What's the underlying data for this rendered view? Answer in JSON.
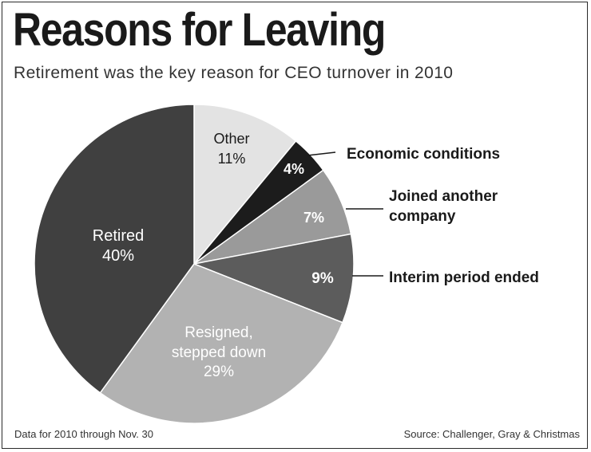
{
  "title": "Reasons for Leaving",
  "subtitle": "Retirement was the key reason for CEO turnover in 2010",
  "footer": {
    "note": "Data for 2010 through Nov. 30",
    "source": "Source: Challenger, Gray & Christmas"
  },
  "chart_data": {
    "type": "pie",
    "title": "Reasons for Leaving",
    "subtitle": "Retirement was the key reason for CEO turnover in 2010",
    "unit": "%",
    "slices": [
      {
        "label": "Other",
        "value": 11,
        "value_label": "11%",
        "color": "#e3e3e3",
        "text_color": "#1a1a1a"
      },
      {
        "label": "Economic conditions",
        "value": 4,
        "value_label": "4%",
        "color": "#1c1c1c",
        "text_color": "#ffffff"
      },
      {
        "label": "Joined another company",
        "value": 7,
        "value_label": "7%",
        "color": "#9a9a9a",
        "text_color": "#ffffff"
      },
      {
        "label": "Interim period ended",
        "value": 9,
        "value_label": "9%",
        "color": "#5c5c5c",
        "text_color": "#ffffff"
      },
      {
        "label": "Resigned, stepped down",
        "value": 29,
        "value_label": "29%",
        "color": "#b2b2b2",
        "text_color": "#ffffff"
      },
      {
        "label": "Retired",
        "value": 40,
        "value_label": "40%",
        "color": "#404040",
        "text_color": "#ffffff"
      }
    ],
    "start_angle_deg": 0,
    "direction": "clockwise"
  }
}
